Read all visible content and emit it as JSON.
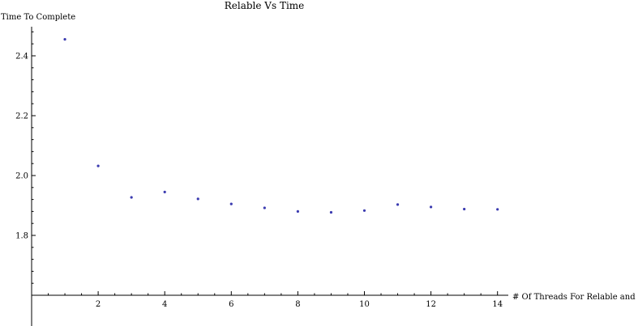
{
  "chart_data": {
    "type": "scatter",
    "title": "Relable Vs Time",
    "xlabel": "# Of Threads For Relable and Rotate",
    "ylabel": "Time To Complete",
    "x": [
      1,
      2,
      3,
      4,
      5,
      6,
      7,
      8,
      9,
      10,
      11,
      12,
      13,
      14
    ],
    "y": [
      2.455,
      2.032,
      1.927,
      1.945,
      1.922,
      1.905,
      1.892,
      1.88,
      1.877,
      1.883,
      1.903,
      1.895,
      1.888,
      1.887
    ],
    "xlim": [
      0,
      14.4
    ],
    "ylim": [
      1.6,
      2.5
    ],
    "x_axis_at_y": 1.6,
    "x_ticks": [
      2,
      4,
      6,
      8,
      10,
      12,
      14
    ],
    "x_tick_labels": [
      "2",
      "4",
      "6",
      "8",
      "10",
      "12",
      "14"
    ],
    "y_ticks": [
      1.8,
      2.0,
      2.2,
      2.4
    ],
    "y_tick_labels": [
      "1.8",
      "2.0",
      "2.2",
      "2.4"
    ],
    "grid": false,
    "point_color": "#3b3bb0"
  }
}
